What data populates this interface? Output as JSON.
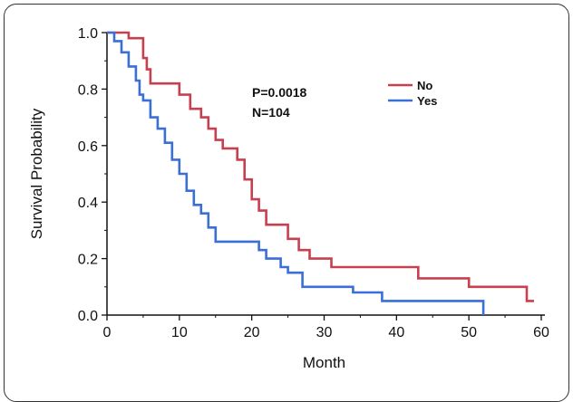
{
  "chart_data": {
    "type": "line",
    "title": "",
    "xlabel": "Month",
    "ylabel": "Survival Probability",
    "xlim": [
      0,
      60
    ],
    "ylim": [
      0,
      1.0
    ],
    "x_ticks": [
      "0",
      "10",
      "20",
      "30",
      "40",
      "50",
      "60"
    ],
    "y_ticks": [
      "0.0",
      "0.2",
      "0.4",
      "0.6",
      "0.8",
      "1.0"
    ],
    "grid": false,
    "legend_position": "top-right",
    "annotations": [
      "P=0.0018",
      "N=104"
    ],
    "series": [
      {
        "name": "No",
        "color": "#c8404f",
        "step": true,
        "points": [
          [
            0,
            1.0
          ],
          [
            3,
            1.0
          ],
          [
            3,
            0.98
          ],
          [
            5,
            0.98
          ],
          [
            5,
            0.91
          ],
          [
            5.5,
            0.91
          ],
          [
            5.5,
            0.87
          ],
          [
            6,
            0.87
          ],
          [
            6,
            0.82
          ],
          [
            10,
            0.82
          ],
          [
            10,
            0.78
          ],
          [
            11.5,
            0.78
          ],
          [
            11.5,
            0.73
          ],
          [
            13,
            0.73
          ],
          [
            13,
            0.7
          ],
          [
            14,
            0.7
          ],
          [
            14,
            0.66
          ],
          [
            15,
            0.66
          ],
          [
            15,
            0.62
          ],
          [
            16,
            0.62
          ],
          [
            16,
            0.59
          ],
          [
            18,
            0.59
          ],
          [
            18,
            0.55
          ],
          [
            19,
            0.55
          ],
          [
            19,
            0.48
          ],
          [
            20,
            0.48
          ],
          [
            20,
            0.41
          ],
          [
            21,
            0.41
          ],
          [
            21,
            0.37
          ],
          [
            22,
            0.37
          ],
          [
            22,
            0.32
          ],
          [
            25,
            0.32
          ],
          [
            25,
            0.27
          ],
          [
            26.5,
            0.27
          ],
          [
            26.5,
            0.23
          ],
          [
            28,
            0.23
          ],
          [
            28,
            0.2
          ],
          [
            31,
            0.2
          ],
          [
            31,
            0.17
          ],
          [
            43,
            0.17
          ],
          [
            43,
            0.13
          ],
          [
            50,
            0.13
          ],
          [
            50,
            0.1
          ],
          [
            58,
            0.1
          ],
          [
            58,
            0.05
          ],
          [
            59,
            0.05
          ]
        ]
      },
      {
        "name": "Yes",
        "color": "#3a6fd8",
        "step": true,
        "points": [
          [
            0,
            1.0
          ],
          [
            1,
            1.0
          ],
          [
            1,
            0.97
          ],
          [
            2,
            0.97
          ],
          [
            2,
            0.93
          ],
          [
            3,
            0.93
          ],
          [
            3,
            0.88
          ],
          [
            4,
            0.88
          ],
          [
            4,
            0.83
          ],
          [
            4.5,
            0.83
          ],
          [
            4.5,
            0.78
          ],
          [
            5,
            0.78
          ],
          [
            5,
            0.76
          ],
          [
            6,
            0.76
          ],
          [
            6,
            0.7
          ],
          [
            7,
            0.7
          ],
          [
            7,
            0.66
          ],
          [
            8,
            0.66
          ],
          [
            8,
            0.61
          ],
          [
            9,
            0.61
          ],
          [
            9,
            0.55
          ],
          [
            10,
            0.55
          ],
          [
            10,
            0.5
          ],
          [
            11,
            0.5
          ],
          [
            11,
            0.44
          ],
          [
            12,
            0.44
          ],
          [
            12,
            0.39
          ],
          [
            13,
            0.39
          ],
          [
            13,
            0.36
          ],
          [
            14,
            0.36
          ],
          [
            14,
            0.31
          ],
          [
            15,
            0.31
          ],
          [
            15,
            0.26
          ],
          [
            21,
            0.26
          ],
          [
            21,
            0.23
          ],
          [
            22,
            0.23
          ],
          [
            22,
            0.2
          ],
          [
            24,
            0.2
          ],
          [
            24,
            0.17
          ],
          [
            25,
            0.17
          ],
          [
            25,
            0.15
          ],
          [
            27,
            0.15
          ],
          [
            27,
            0.1
          ],
          [
            34,
            0.1
          ],
          [
            34,
            0.08
          ],
          [
            38,
            0.08
          ],
          [
            38,
            0.05
          ],
          [
            52,
            0.05
          ],
          [
            52,
            0.0
          ]
        ]
      }
    ]
  }
}
